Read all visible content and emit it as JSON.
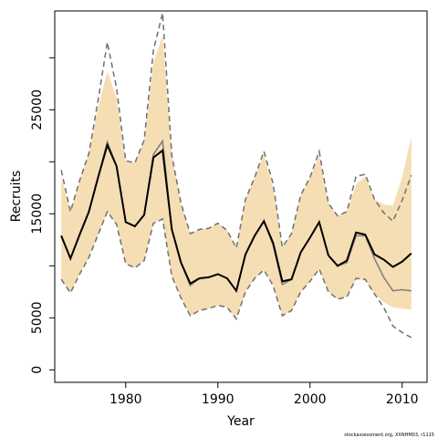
{
  "chart_data": {
    "type": "line",
    "xlabel": "Year",
    "ylabel": "Recruits",
    "xlim": [
      1972.3,
      2012.7
    ],
    "ylim": [
      -1200,
      34500
    ],
    "x_ticks": [
      1980,
      1990,
      2000,
      2010
    ],
    "y_ticks": [
      0,
      5000,
      15000,
      25000
    ],
    "y_minor_ticks": [
      10000,
      20000,
      30000
    ],
    "grid": false,
    "legend": "none",
    "x": [
      1973,
      1974,
      1975,
      1976,
      1977,
      1978,
      1979,
      1980,
      1981,
      1982,
      1983,
      1984,
      1985,
      1986,
      1987,
      1988,
      1989,
      1990,
      1991,
      1992,
      1993,
      1994,
      1995,
      1996,
      1997,
      1998,
      1999,
      2000,
      2001,
      2002,
      2003,
      2004,
      2005,
      2006,
      2007,
      2008,
      2009,
      2010,
      2011
    ],
    "series": [
      {
        "role": "estimate",
        "color": "#000000",
        "values": [
          12900,
          10700,
          13000,
          15200,
          18500,
          21600,
          19600,
          14200,
          13800,
          14900,
          20400,
          21100,
          13500,
          10300,
          8300,
          8800,
          8900,
          9200,
          8800,
          7600,
          11100,
          12900,
          14300,
          12200,
          8500,
          8700,
          11300,
          12700,
          14200,
          11000,
          10000,
          10500,
          13200,
          13000,
          11100,
          10600,
          9900,
          10400,
          11200
        ]
      },
      {
        "role": "alternate-estimate",
        "color": "#808080",
        "values": [
          12900,
          10700,
          13000,
          15200,
          18500,
          21900,
          19600,
          14200,
          13800,
          14900,
          20700,
          22000,
          13500,
          10300,
          8100,
          8800,
          8900,
          9200,
          8800,
          7600,
          11100,
          12900,
          14300,
          12000,
          8200,
          8700,
          11300,
          12700,
          14200,
          11000,
          10000,
          10300,
          12900,
          12900,
          10700,
          8900,
          7600,
          7700,
          7600
        ]
      },
      {
        "role": "upper-bound",
        "color": "#707070",
        "style": "dashed",
        "values": [
          19200,
          15200,
          18200,
          20800,
          25900,
          31500,
          27100,
          20100,
          19900,
          22100,
          30700,
          34300,
          20600,
          16000,
          13100,
          13500,
          13600,
          14100,
          13400,
          11700,
          16400,
          18500,
          21000,
          17900,
          11800,
          13100,
          16800,
          18500,
          21000,
          16000,
          14800,
          15200,
          18600,
          18800,
          16400,
          15100,
          14300,
          16300,
          18700
        ]
      },
      {
        "role": "lower-bound",
        "color": "#707070",
        "style": "dashed",
        "values": [
          8700,
          7400,
          9200,
          10800,
          13000,
          15200,
          14000,
          10200,
          9800,
          10500,
          14100,
          14500,
          9000,
          6900,
          5200,
          5700,
          5900,
          6200,
          6000,
          4900,
          7500,
          8800,
          9600,
          8100,
          5200,
          5700,
          7500,
          8500,
          9700,
          7500,
          6800,
          7000,
          8800,
          8700,
          7300,
          6000,
          4200,
          3600,
          3100
        ]
      },
      {
        "role": "confidence-band-upper",
        "color": "#f5deb3",
        "values": [
          18500,
          15200,
          18200,
          20800,
          25200,
          28700,
          26200,
          20100,
          19900,
          22100,
          29500,
          32200,
          20600,
          16000,
          13100,
          13500,
          13600,
          14100,
          13400,
          11700,
          16400,
          18500,
          20700,
          17500,
          11800,
          13100,
          16800,
          18500,
          20600,
          16000,
          14800,
          15200,
          17800,
          18600,
          16400,
          15900,
          15800,
          18500,
          22400
        ]
      },
      {
        "role": "confidence-band-lower",
        "color": "#f5deb3",
        "values": [
          8700,
          7400,
          9200,
          10800,
          13000,
          15200,
          14000,
          10200,
          9800,
          10500,
          14100,
          14500,
          9000,
          6900,
          5200,
          5700,
          5900,
          6200,
          6000,
          4900,
          7500,
          8800,
          9600,
          8100,
          5200,
          5700,
          7500,
          8500,
          9700,
          7500,
          6800,
          7000,
          8700,
          8600,
          7300,
          6500,
          6000,
          5900,
          5800
        ]
      }
    ]
  },
  "footnote": "stockassessment.org, XXNHM03, r1115"
}
